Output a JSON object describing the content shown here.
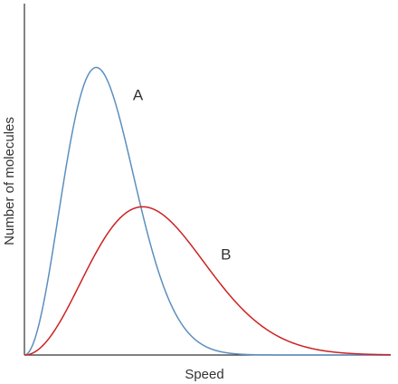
{
  "chart_data": {
    "type": "line",
    "xlabel": "Speed",
    "ylabel": "Number of molecules",
    "xlim": [
      0,
      100
    ],
    "ylim": [
      0,
      100
    ],
    "grid": false,
    "x_ticks_shown": false,
    "y_ticks_shown": false,
    "series": [
      {
        "name": "A",
        "color": "#5b8fbf",
        "peak_x": 19.6,
        "peak_y": 90.2,
        "x": [
          0,
          5,
          10,
          15,
          19.6,
          25,
          30,
          35,
          40,
          45,
          50,
          55,
          60
        ],
        "y": [
          0,
          16,
          48,
          80,
          90.2,
          78,
          55,
          33,
          17,
          7,
          2.5,
          0.8,
          0.2
        ]
      },
      {
        "name": "B",
        "color": "#cc2222",
        "peak_x": 32.3,
        "peak_y": 46.5,
        "x": [
          0,
          5,
          10,
          15,
          20,
          25,
          32.3,
          40,
          50,
          60,
          70,
          80,
          90,
          100
        ],
        "y": [
          0,
          5,
          14,
          25,
          35,
          42,
          46.5,
          41,
          28,
          16,
          8,
          3.5,
          1.3,
          0.4
        ]
      }
    ]
  }
}
